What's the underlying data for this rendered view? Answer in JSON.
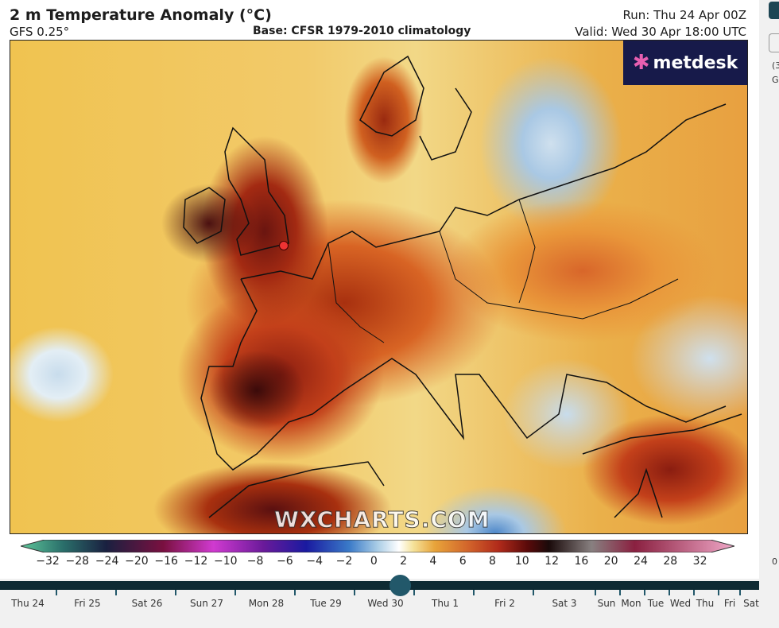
{
  "header": {
    "title": "2 m Temperature Anomaly (°C)",
    "model": "GFS 0.25°",
    "base": "Base: CFSR 1979-2010 climatology",
    "run": "Run: Thu 24 Apr 00Z",
    "valid": "Valid: Wed 30 Apr 18:00 UTC"
  },
  "logo": {
    "text": "metdesk"
  },
  "watermark": "WXCHARTS.COM",
  "colorbar": {
    "unit": "°C",
    "ticks": [
      "−32",
      "−28",
      "−24",
      "−20",
      "−16",
      "−12",
      "−10",
      "−8",
      "−6",
      "−4",
      "−2",
      "0",
      "2",
      "4",
      "6",
      "8",
      "10",
      "12",
      "16",
      "20",
      "24",
      "28",
      "32"
    ]
  },
  "timeline": {
    "selected": "Wed 30",
    "selected_fraction": 0.405,
    "days": [
      "Thu 24",
      "Fri 25",
      "Sat 26",
      "Sun 27",
      "Mon 28",
      "Tue 29",
      "Wed 30",
      "Thu 1",
      "Fri 2",
      "Sat 3",
      "Sun",
      "Mon",
      "Tue",
      "Wed",
      "Thu",
      "Fri",
      "Sat"
    ]
  },
  "sidebar": {
    "text1": "(3",
    "text2": "G",
    "text3": "0"
  },
  "colors": {
    "track": "#0e2a33",
    "knob": "#22586a",
    "logo_bg": "#171a4a"
  }
}
